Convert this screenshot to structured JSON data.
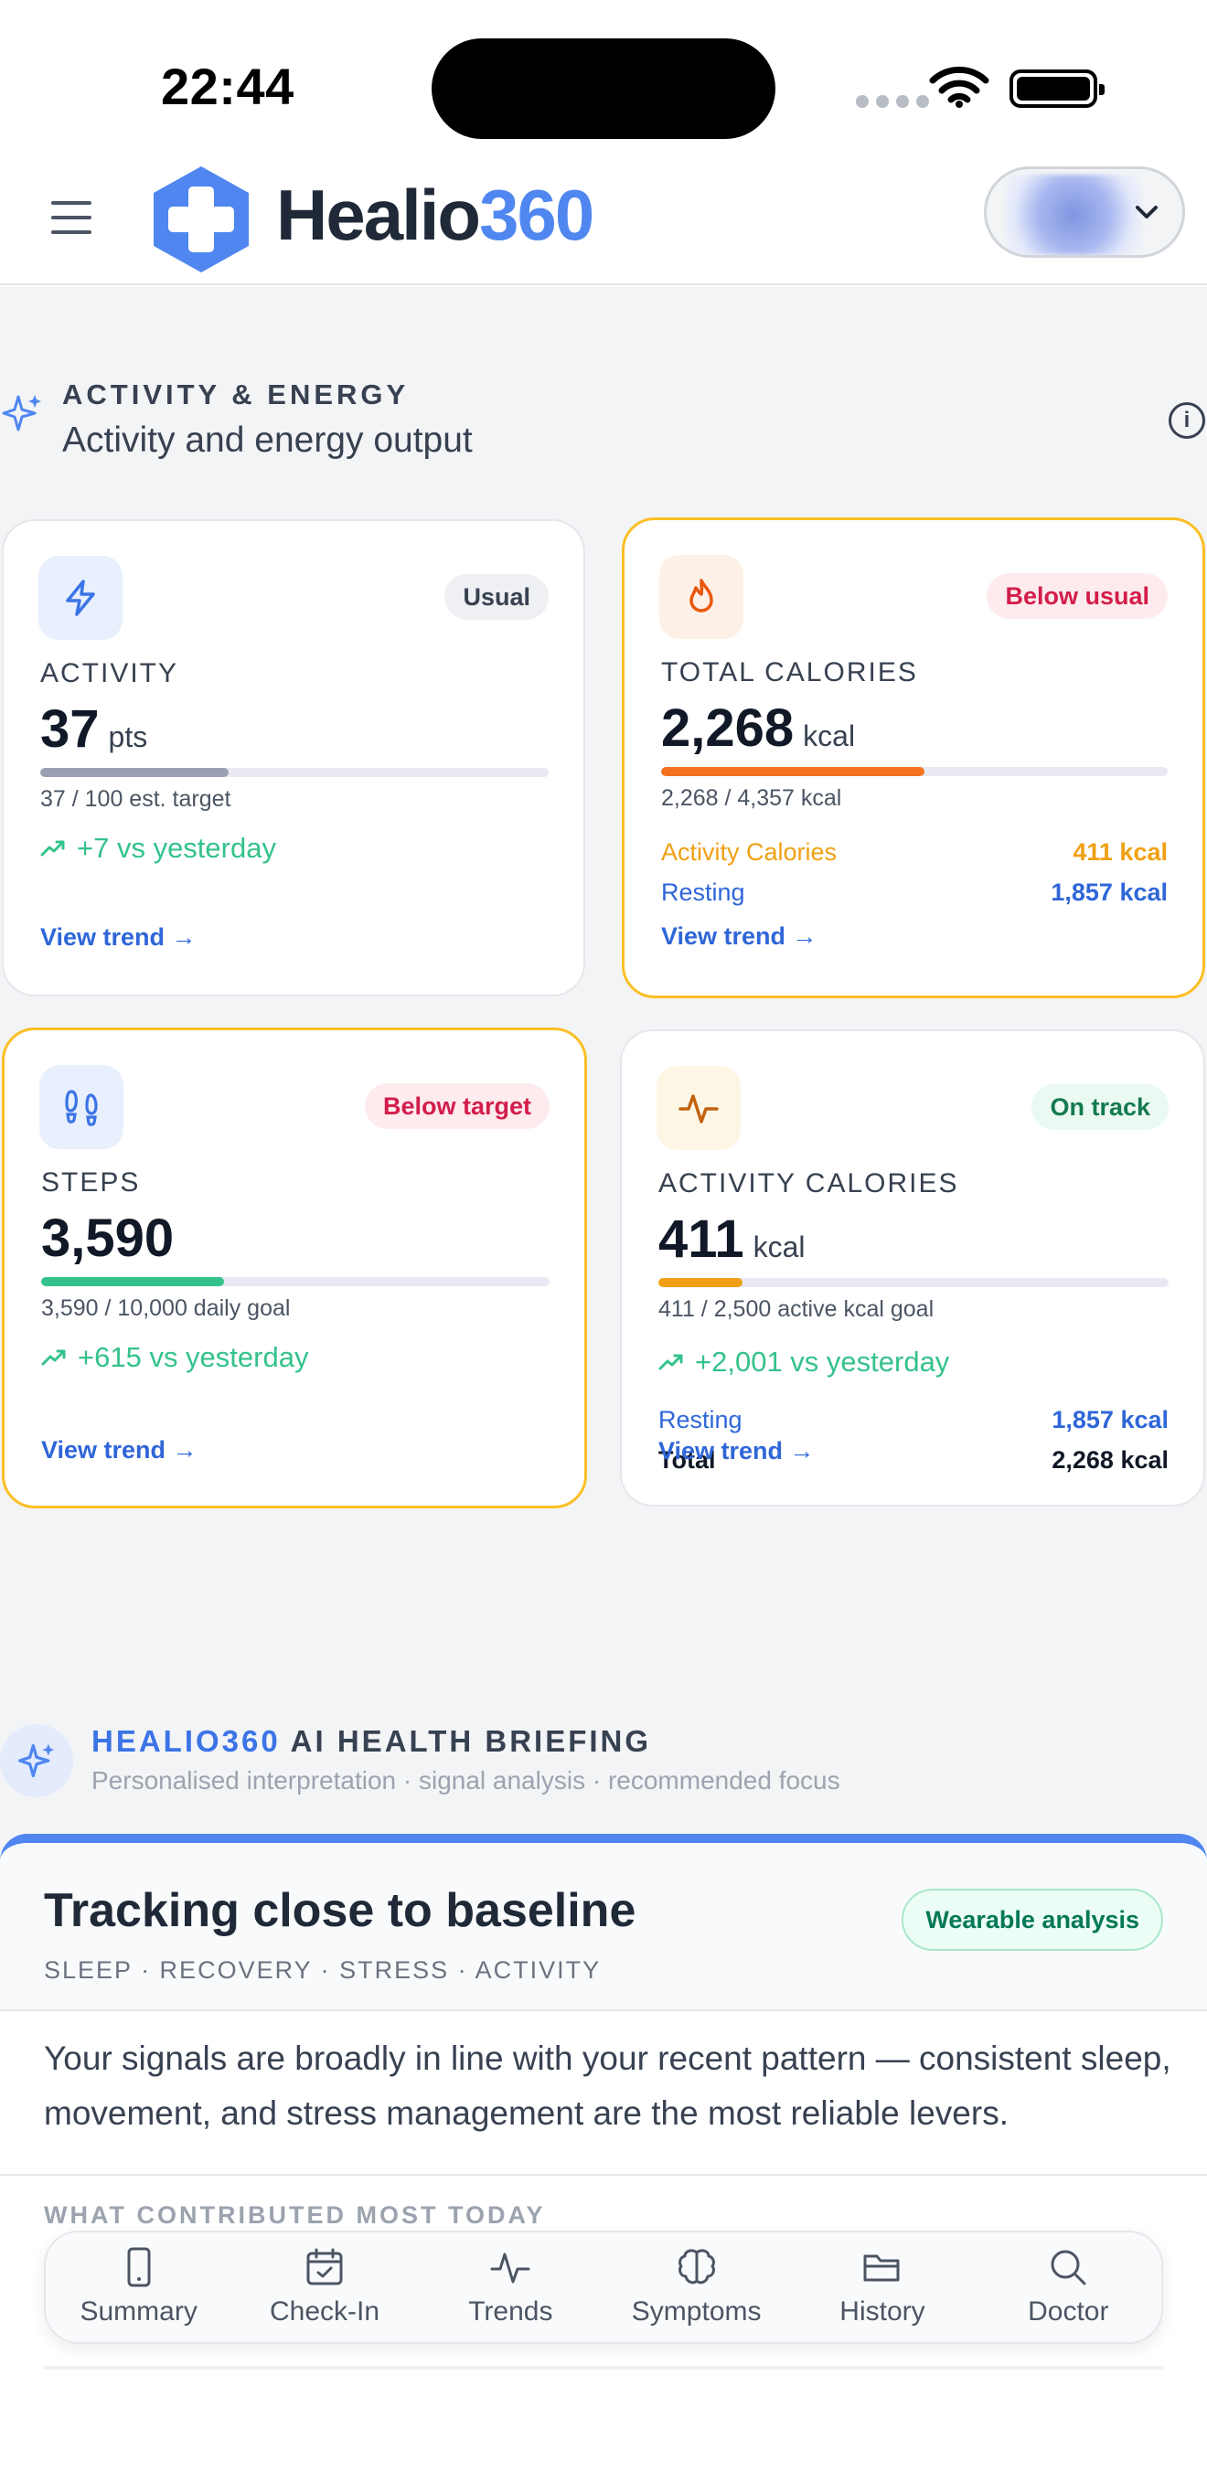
{
  "status_bar": {
    "time": "22:44"
  },
  "header": {
    "menu_icon": "hamburger-icon",
    "brand_part1": "Healio",
    "brand_part2": "360",
    "colors": {
      "brand_dark": "#1f2937",
      "brand_blue": "#4f86f0"
    }
  },
  "section": {
    "kicker": "ACTIVITY & ENERGY",
    "subtitle": "Activity and energy output",
    "info_glyph": "i"
  },
  "cards": {
    "activity": {
      "badge": "Usual",
      "label": "ACTIVITY",
      "value": "37",
      "unit": "pts",
      "progress": 0.37,
      "caption": "37 / 100 est. target",
      "delta": "+7 vs yesterday",
      "link": "View trend →"
    },
    "total_calories": {
      "badge": "Below usual",
      "label": "TOTAL CALORIES",
      "value": "2,268",
      "unit": "kcal",
      "progress": 0.52,
      "caption": "2,268 / 4,357 kcal",
      "row1_label": "Activity Calories",
      "row1_value": "411 kcal",
      "row2_label": "Resting",
      "row2_value": "1,857 kcal",
      "link": "View trend →"
    },
    "steps": {
      "badge": "Below target",
      "label": "STEPS",
      "value": "3,590",
      "progress": 0.359,
      "caption": "3,590 / 10,000 daily goal",
      "delta": "+615 vs yesterday",
      "link": "View trend →"
    },
    "activity_calories": {
      "badge": "On track",
      "label": "ACTIVITY CALORIES",
      "value": "411",
      "unit": "kcal",
      "progress": 0.164,
      "caption": "411 / 2,500 active kcal goal",
      "delta": "+2,001 vs yesterday",
      "row1_label": "Resting",
      "row1_value": "1,857 kcal",
      "row2_label": "Total",
      "row2_value": "2,268 kcal",
      "link": "View trend →"
    }
  },
  "briefing": {
    "kicker_highlight": "HEALIO360",
    "kicker_rest": " AI HEALTH BRIEFING",
    "subtitle": "Personalised interpretation · signal analysis · recommended focus",
    "title": "Tracking close to baseline",
    "tags": "SLEEP · RECOVERY · STRESS · ACTIVITY",
    "pill": "Wearable analysis",
    "body": "Your signals are broadly in line with your recent pattern — consistent sleep, movement, and stress management are the most reliable levers.",
    "contributors_heading": "WHAT CONTRIBUTED MOST TODAY"
  },
  "bottom_nav": [
    {
      "label": "Summary",
      "icon": "phone-icon"
    },
    {
      "label": "Check-In",
      "icon": "calendar-check-icon"
    },
    {
      "label": "Trends",
      "icon": "pulse-icon"
    },
    {
      "label": "Symptoms",
      "icon": "brain-icon"
    },
    {
      "label": "History",
      "icon": "folder-icon"
    },
    {
      "label": "Doctor",
      "icon": "search-icon"
    }
  ]
}
